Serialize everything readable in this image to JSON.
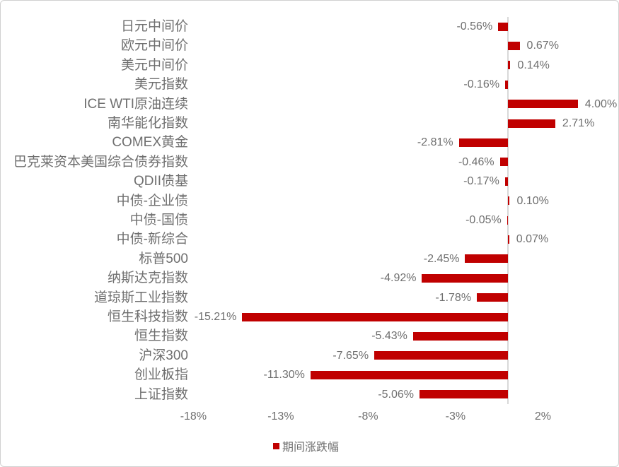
{
  "chart_data": {
    "type": "bar",
    "orientation": "horizontal",
    "title": "",
    "xlabel": "",
    "ylabel": "",
    "xlim": [
      -20.5,
      6.3
    ],
    "grid": false,
    "legend_position": "bottom",
    "legend": "期间涨跌幅",
    "categories": [
      "日元中间价",
      "欧元中间价",
      "美元中间价",
      "美元指数",
      "ICE WTI原油连续",
      "南华能化指数",
      "COMEX黄金",
      "巴克莱资本美国综合债券指数",
      "QDII债基",
      "中债-企业债",
      "中债-国债",
      "中债-新综合",
      "标普500",
      "纳斯达克指数",
      "道琼斯工业指数",
      "恒生科技指数",
      "恒生指数",
      "沪深300",
      "创业板指",
      "上证指数"
    ],
    "values": [
      -0.56,
      0.67,
      0.14,
      -0.16,
      4.0,
      2.71,
      -2.81,
      -0.46,
      -0.17,
      0.1,
      -0.05,
      0.07,
      -2.45,
      -4.92,
      -1.78,
      -15.21,
      -5.43,
      -7.65,
      -11.3,
      -5.06
    ],
    "value_labels": [
      "-0.56%",
      "0.67%",
      "0.14%",
      "-0.16%",
      "4.00%",
      "2.71%",
      "-2.81%",
      "-0.46%",
      "-0.17%",
      "0.10%",
      "-0.05%",
      "0.07%",
      "-2.45%",
      "-4.92%",
      "-1.78%",
      "-15.21%",
      "-5.43%",
      "-7.65%",
      "-11.30%",
      "-5.06%"
    ],
    "x_tick_values": [
      -18,
      -13,
      -8,
      -3,
      2
    ],
    "x_tick_labels": [
      "-18%",
      "-13%",
      "-8%",
      "-3%",
      "2%"
    ],
    "colors": {
      "bar": "#C00000",
      "axis_line": "#D9D9D9",
      "text": "#6F6F6F"
    }
  }
}
